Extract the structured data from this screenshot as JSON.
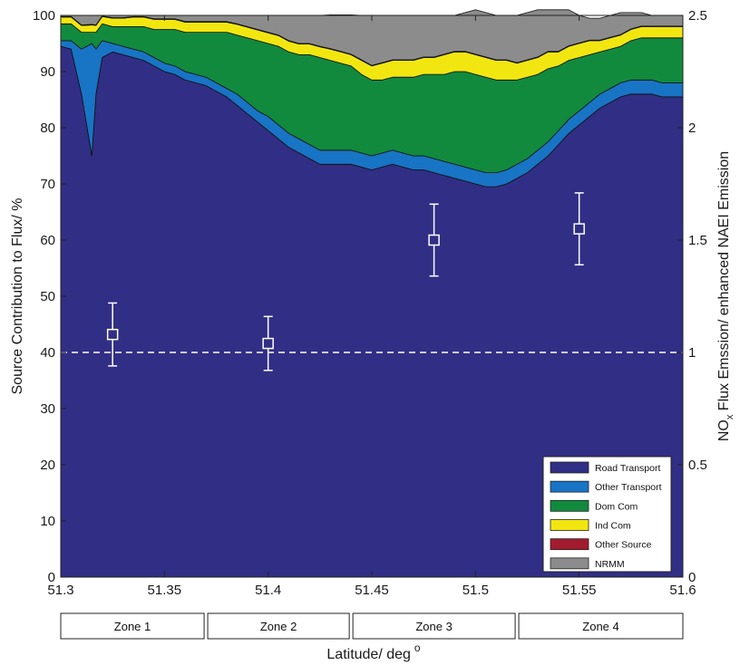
{
  "chart_data": {
    "type": "area",
    "stacked": true,
    "xlabel_main": "Latitude/ deg",
    "xlabel_sup": "o",
    "ylabel": "Source Contribution to Flux/ %",
    "y2label_pre": "NO",
    "y2label_sub": "x",
    "y2label_post": " Flux Emssion/ enhanced NAEI Emission",
    "xlim": [
      51.3,
      51.6
    ],
    "ylim": [
      0,
      100
    ],
    "y2lim": [
      0,
      2.5
    ],
    "xticks": [
      "51.3",
      "51.35",
      "51.4",
      "51.45",
      "51.5",
      "51.55",
      "51.6"
    ],
    "yticks": [
      "0",
      "10",
      "20",
      "30",
      "40",
      "50",
      "60",
      "70",
      "80",
      "90",
      "100"
    ],
    "y2ticks": [
      "0",
      "0.5",
      "1",
      "1.5",
      "2",
      "2.5"
    ],
    "x": [
      51.3,
      51.305,
      51.31,
      51.315,
      51.317,
      51.32,
      51.325,
      51.33,
      51.335,
      51.34,
      51.345,
      51.35,
      51.355,
      51.36,
      51.365,
      51.37,
      51.375,
      51.38,
      51.385,
      51.39,
      51.395,
      51.4,
      51.405,
      51.41,
      51.415,
      51.42,
      51.425,
      51.43,
      51.435,
      51.44,
      51.445,
      51.45,
      51.455,
      51.46,
      51.465,
      51.47,
      51.475,
      51.48,
      51.485,
      51.49,
      51.495,
      51.5,
      51.505,
      51.51,
      51.515,
      51.52,
      51.525,
      51.53,
      51.535,
      51.54,
      51.545,
      51.55,
      51.555,
      51.56,
      51.565,
      51.57,
      51.575,
      51.58,
      51.585,
      51.59,
      51.595,
      51.6
    ],
    "series": [
      {
        "name": "Road Transport",
        "color": "#312e85",
        "values": [
          94.5,
          94,
          86,
          75,
          86,
          92.5,
          93.5,
          93,
          92.5,
          92,
          91,
          90,
          89.5,
          88.5,
          88,
          87.5,
          86.5,
          85.5,
          84,
          82.5,
          81,
          79.5,
          78,
          76.5,
          75.5,
          74.5,
          73.5,
          73.5,
          73.5,
          73.5,
          73,
          72.5,
          73,
          73.5,
          73,
          72.5,
          72.5,
          72,
          71.5,
          71,
          70.5,
          70,
          69.5,
          69.5,
          70,
          71,
          72,
          73.5,
          75,
          77,
          79,
          80.5,
          82,
          83.5,
          84.5,
          85.5,
          86,
          86,
          86,
          85.5,
          85.5,
          85.5
        ]
      },
      {
        "name": "Other Transport",
        "color": "#1874c4",
        "values": [
          1,
          1.5,
          8,
          20,
          8,
          3,
          1.5,
          1.5,
          1.5,
          1.5,
          1.5,
          1.5,
          1.5,
          1.5,
          1.5,
          1.5,
          1.5,
          1.5,
          2,
          2,
          2,
          2.5,
          2.5,
          2.5,
          2.5,
          2.5,
          2.5,
          2.5,
          2.5,
          2.5,
          2.5,
          2.5,
          2.5,
          2.5,
          2.5,
          2.5,
          2.5,
          2.5,
          2.5,
          2.5,
          2.5,
          2.5,
          2.5,
          2.5,
          2.5,
          2.5,
          2.5,
          2.5,
          2.5,
          2.5,
          2.5,
          2.5,
          2.5,
          2.5,
          2.5,
          2.5,
          2.5,
          2.5,
          2.5,
          2.5,
          2.5,
          2.5
        ]
      },
      {
        "name": "Dom Com",
        "color": "#118a3e",
        "values": [
          3,
          3,
          3,
          2,
          3,
          3,
          3,
          3.5,
          4,
          4.5,
          5,
          6,
          6.5,
          7,
          7.5,
          8,
          9,
          10,
          10.5,
          11.5,
          12.5,
          13,
          14,
          14.5,
          15,
          16,
          16.5,
          16,
          15.5,
          15,
          14,
          13.5,
          13,
          13,
          13.5,
          14,
          14.5,
          15,
          15.5,
          16.5,
          17,
          17,
          17,
          16.5,
          16,
          15,
          14.5,
          13.5,
          13,
          11.5,
          10.5,
          9.5,
          8.5,
          7.5,
          7,
          6.5,
          7,
          7.5,
          7.5,
          8,
          8,
          8
        ]
      },
      {
        "name": "Ind Com",
        "color": "#f2e611",
        "values": [
          1.2,
          1.2,
          1.2,
          1.3,
          1.2,
          1.3,
          1.5,
          1.5,
          1.7,
          1.7,
          1.8,
          1.8,
          1.8,
          1.8,
          1.8,
          1.8,
          1.8,
          1.8,
          1.9,
          1.9,
          1.9,
          1.9,
          1.9,
          1.9,
          1.9,
          1.9,
          1.9,
          2,
          2,
          2,
          2.5,
          2.5,
          3,
          3,
          3,
          3,
          3,
          3,
          3.5,
          3.5,
          3.5,
          3.5,
          3.5,
          3.5,
          3.5,
          3,
          3,
          3,
          3,
          2.5,
          2.5,
          2.5,
          2.5,
          2,
          2,
          2,
          2,
          2,
          2,
          2,
          2,
          2
        ]
      },
      {
        "name": "Other Source",
        "color": "#a31b2e",
        "values": [
          0.1,
          0.1,
          0.1,
          0.1,
          0.1,
          0.1,
          0.1,
          0.1,
          0.1,
          0.1,
          0.1,
          0.1,
          0.1,
          0.1,
          0.1,
          0.1,
          0.1,
          0.1,
          0.1,
          0.1,
          0.1,
          0.1,
          0.1,
          0.1,
          0.1,
          0.1,
          0.1,
          0.1,
          0.1,
          0.1,
          0.1,
          0.1,
          0.1,
          0.1,
          0.1,
          0.1,
          0.1,
          0.1,
          0.1,
          0.1,
          0.1,
          0.1,
          0.1,
          0.1,
          0.1,
          0.1,
          0.1,
          0.1,
          0.1,
          0.1,
          0.1,
          0.1,
          0.1,
          0.1,
          0.1,
          0.1,
          0.1,
          0.1,
          0.1,
          0.1,
          0.1,
          0.1
        ]
      },
      {
        "name": "NRMM",
        "color": "#8c8c8c",
        "values": [
          0.2,
          0.2,
          1.7,
          1.6,
          1.7,
          0.1,
          0.4,
          0.4,
          0.2,
          0.2,
          0.6,
          0.6,
          0.6,
          1.1,
          1.1,
          1.1,
          1.1,
          1.1,
          1.5,
          2,
          2.5,
          3,
          3.5,
          4.5,
          5,
          5,
          5.5,
          6,
          6.5,
          7,
          7.9,
          8.9,
          8.4,
          7.9,
          7.9,
          7.9,
          7.4,
          7.4,
          6.9,
          6.4,
          6.9,
          7.9,
          7.9,
          7.9,
          7.9,
          8.4,
          8.4,
          8.4,
          7.4,
          7.4,
          6.4,
          4.9,
          3.9,
          3.9,
          3.9,
          3.9,
          2.9,
          2.4,
          1.9,
          1.9,
          1.9,
          1.9
        ]
      }
    ],
    "flux_points": [
      {
        "x": 51.325,
        "y": 1.08,
        "yerr_low": 0.94,
        "yerr_high": 1.22
      },
      {
        "x": 51.4,
        "y": 1.04,
        "yerr_low": 0.92,
        "yerr_high": 1.16
      },
      {
        "x": 51.48,
        "y": 1.5,
        "yerr_low": 1.34,
        "yerr_high": 1.66
      },
      {
        "x": 51.55,
        "y": 1.55,
        "yerr_low": 1.39,
        "yerr_high": 1.71
      }
    ],
    "reference_line_y2": 1,
    "legend": {
      "placement": "bottom-right",
      "entries": [
        {
          "label": "Road Transport",
          "color": "#312e85"
        },
        {
          "label": "Other Transport",
          "color": "#1874c4"
        },
        {
          "label": "Dom Com",
          "color": "#118a3e"
        },
        {
          "label": "Ind Com",
          "color": "#f2e611"
        },
        {
          "label": "Other Source",
          "color": "#a31b2e"
        },
        {
          "label": "NRMM",
          "color": "#8c8c8c"
        }
      ]
    },
    "zones": [
      {
        "label": "Zone 1",
        "x_start": 51.3,
        "x_end": 51.37
      },
      {
        "label": "Zone 2",
        "x_start": 51.37,
        "x_end": 51.44
      },
      {
        "label": "Zone 3",
        "x_start": 51.44,
        "x_end": 51.52
      },
      {
        "label": "Zone 4",
        "x_start": 51.52,
        "x_end": 51.6
      }
    ]
  }
}
